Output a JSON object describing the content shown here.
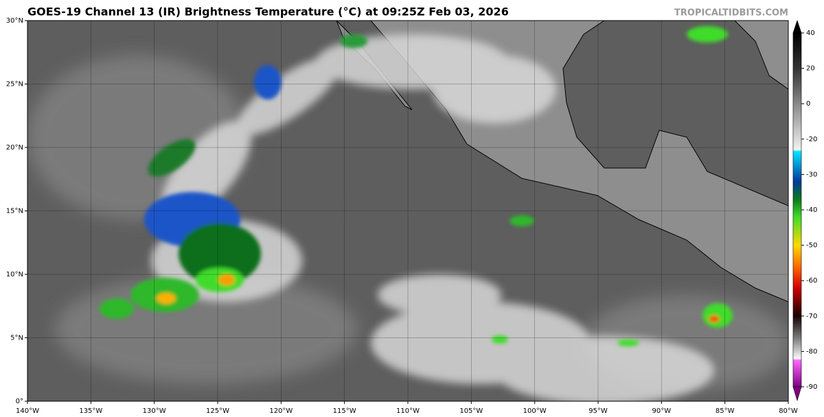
{
  "header": {
    "title": "GOES-19 Channel 13 (IR) Brightness Temperature (°C) at 09:25Z Feb 03, 2026",
    "watermark": "TROPICALTIDBITS.COM"
  },
  "map": {
    "lon_range": [
      -140,
      -80
    ],
    "lat_range": [
      0,
      30
    ],
    "lat_ticks": [
      {
        "value": 0,
        "label": "0°"
      },
      {
        "value": 5,
        "label": "5°N"
      },
      {
        "value": 10,
        "label": "10°N"
      },
      {
        "value": 15,
        "label": "15°N"
      },
      {
        "value": 20,
        "label": "20°N"
      },
      {
        "value": 25,
        "label": "25°N"
      },
      {
        "value": 30,
        "label": "30°N"
      }
    ],
    "lon_ticks": [
      {
        "value": -140,
        "label": "140°W"
      },
      {
        "value": -135,
        "label": "135°W"
      },
      {
        "value": -130,
        "label": "130°W"
      },
      {
        "value": -125,
        "label": "125°W"
      },
      {
        "value": -120,
        "label": "120°W"
      },
      {
        "value": -115,
        "label": "115°W"
      },
      {
        "value": -110,
        "label": "110°W"
      },
      {
        "value": -105,
        "label": "105°W"
      },
      {
        "value": -100,
        "label": "100°W"
      },
      {
        "value": -95,
        "label": "95°W"
      },
      {
        "value": -90,
        "label": "90°W"
      },
      {
        "value": -85,
        "label": "85°W"
      },
      {
        "value": -80,
        "label": "80°W"
      }
    ]
  },
  "colorbar": {
    "ticks": [
      40,
      20,
      0,
      -20,
      -30,
      -40,
      -50,
      -60,
      -70,
      -80,
      -90
    ]
  }
}
